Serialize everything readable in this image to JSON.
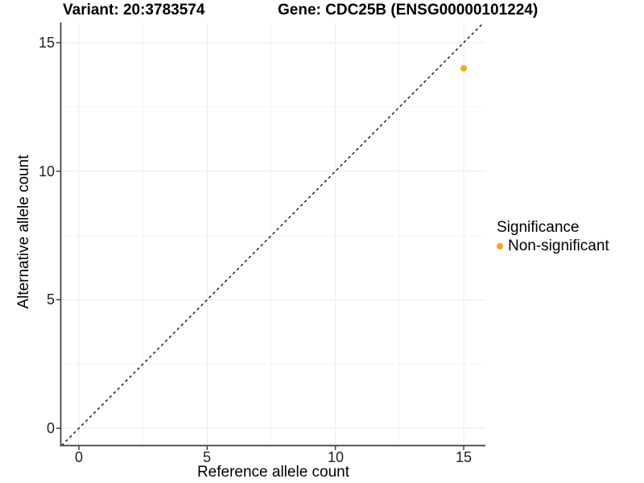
{
  "titles": {
    "variant": "Variant: 20:3783574",
    "gene": "Gene: CDC25B (ENSG00000101224)"
  },
  "axes": {
    "x": {
      "label": "Reference allele count",
      "ticks": [
        "0",
        "5",
        "10",
        "15"
      ]
    },
    "y": {
      "label": "Alternative allele count",
      "ticks": [
        "0",
        "5",
        "10",
        "15"
      ]
    }
  },
  "legend": {
    "title": "Significance",
    "items": [
      {
        "label": "Non-significant",
        "color": "#F9A41F"
      }
    ]
  },
  "chart_data": {
    "type": "scatter",
    "title": "Variant: 20:3783574 — Gene: CDC25B (ENSG00000101224)",
    "xlabel": "Reference allele count",
    "ylabel": "Alternative allele count",
    "xlim": [
      -0.7,
      15.85
    ],
    "ylim": [
      -0.67,
      15.78
    ],
    "x_ticks": [
      0,
      5,
      10,
      15
    ],
    "y_ticks": [
      0,
      5,
      10,
      15
    ],
    "x_minor_ticks": [
      2.5,
      7.5,
      12.5
    ],
    "y_minor_ticks": [
      2.5,
      7.5,
      12.5
    ],
    "grid": {
      "major_color": "#ebebeb",
      "minor_color": "#f5f5f5"
    },
    "axis_color": "#3c3c3c",
    "series": [
      {
        "name": "Non-significant",
        "color": "#F9A41F",
        "point_radius": 4,
        "points": [
          {
            "x": 15,
            "y": 14
          }
        ]
      }
    ],
    "identity_line": {
      "style": "dashed",
      "color": "#000000",
      "from": [
        -0.67,
        -0.67
      ],
      "to": [
        15.78,
        15.78
      ]
    },
    "legend_position": "right-middle"
  }
}
